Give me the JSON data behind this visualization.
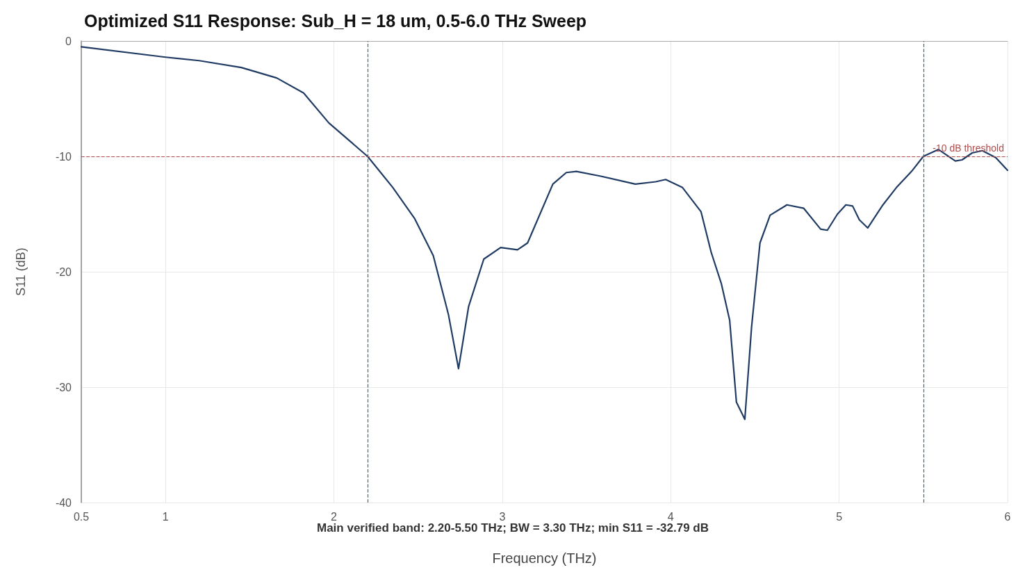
{
  "chart_data": {
    "type": "line",
    "title": "Optimized S11 Response: Sub_H = 18 um, 0.5-6.0 THz Sweep",
    "xlabel": "Frequency (THz)",
    "ylabel": "S11 (dB)",
    "annotations": [
      "Main verified band: 2.20-5.50 THz; BW = 3.30 THz; min S11 = -32.79 dB"
    ],
    "xlim": [
      0.5,
      6
    ],
    "xticks": [
      0.5,
      1,
      2,
      3,
      4,
      5,
      6
    ],
    "ylim": [
      -40,
      0
    ],
    "yticks": [
      -40,
      -30,
      -20,
      -10,
      0
    ],
    "grid": true,
    "marker": "none",
    "line_style": "solid",
    "ref_lines": [
      {
        "axis": "y",
        "value": -10,
        "label": "-10 dB threshold",
        "color": "#b04a4a",
        "line_style": "dashed"
      },
      {
        "axis": "x",
        "value": 2.2,
        "label": null,
        "color": "#3a6878",
        "line_style": "dashed"
      },
      {
        "axis": "x",
        "value": 5.5,
        "label": null,
        "color": "#3a6878",
        "line_style": "dashed"
      }
    ],
    "series": [
      {
        "color": "#1f3b63",
        "x": [
          0.5,
          1.0,
          1.2,
          1.45,
          1.66,
          1.82,
          1.97,
          2.2,
          2.35,
          2.48,
          2.59,
          2.68,
          2.74,
          2.8,
          2.89,
          2.99,
          3.09,
          3.15,
          3.3,
          3.38,
          3.44,
          3.58,
          3.79,
          3.91,
          3.97,
          4.07,
          4.18,
          4.24,
          4.3,
          4.35,
          4.39,
          4.44,
          4.48,
          4.53,
          4.59,
          4.69,
          4.79,
          4.89,
          4.93,
          4.99,
          5.04,
          5.08,
          5.12,
          5.17,
          5.26,
          5.34,
          5.43,
          5.5,
          5.59,
          5.69,
          5.73,
          5.79,
          5.85,
          5.93,
          6.0
        ],
        "values": [
          -0.5,
          -1.4,
          -1.7,
          -2.3,
          -3.2,
          -4.5,
          -7.1,
          -10,
          -12.7,
          -15.4,
          -18.6,
          -23.7,
          -28.4,
          -23,
          -18.9,
          -17.9,
          -18.1,
          -17.5,
          -12.4,
          -11.4,
          -11.3,
          -11.7,
          -12.4,
          -12.2,
          -12.0,
          -12.7,
          -14.8,
          -18.3,
          -21,
          -24.2,
          -31.3,
          -32.79,
          -24.8,
          -17.5,
          -15.1,
          -14.2,
          -14.5,
          -16.3,
          -16.4,
          -15.0,
          -14.2,
          -14.3,
          -15.5,
          -16.2,
          -14.2,
          -12.7,
          -11.3,
          -10,
          -9.4,
          -10.4,
          -10.3,
          -9.7,
          -9.5,
          -10.1,
          -11.2
        ]
      }
    ]
  }
}
